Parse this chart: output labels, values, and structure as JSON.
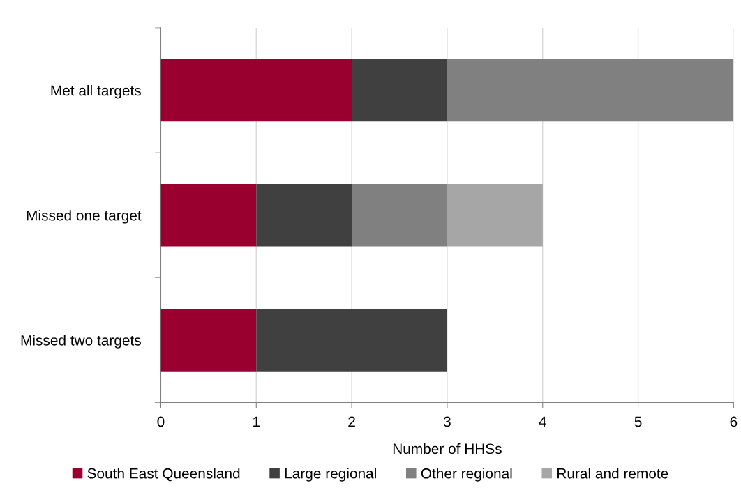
{
  "chart_data": {
    "type": "bar",
    "orientation": "horizontal",
    "stacked": true,
    "categories": [
      "Met all targets",
      "Missed one target",
      "Missed two targets"
    ],
    "series": [
      {
        "name": "South East Queensland",
        "color": "#990030",
        "values": [
          2,
          1,
          1
        ]
      },
      {
        "name": "Large regional",
        "color": "#404040",
        "values": [
          1,
          1,
          2
        ]
      },
      {
        "name": "Other regional",
        "color": "#808080",
        "values": [
          3,
          1,
          0
        ]
      },
      {
        "name": "Rural and remote",
        "color": "#a6a6a6",
        "values": [
          0,
          1,
          0
        ]
      }
    ],
    "xlabel": "Number of HHSs",
    "xlim": [
      0,
      6
    ],
    "xticks": [
      0,
      1,
      2,
      3,
      4,
      5,
      6
    ],
    "grid": "x",
    "legend": "bottom"
  }
}
